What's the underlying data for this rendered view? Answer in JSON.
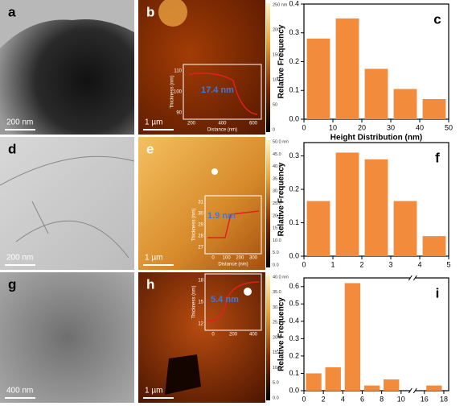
{
  "panels": [
    {
      "label": "a",
      "scale_bar": "200 nm"
    },
    {
      "label": "b",
      "scale_bar": "1 µm",
      "colorbar": [
        "250 nm",
        "200",
        "150",
        "100",
        "50",
        "0"
      ],
      "inset": {
        "yticks": [
          "110",
          "100",
          "90"
        ],
        "xticks": [
          "200",
          "400",
          "600"
        ],
        "ylabel": "Thickness (nm)",
        "xlabel": "Distance (nm)",
        "annotation": "17.4 nm"
      }
    },
    {
      "label": "d",
      "scale_bar": "200 nm"
    },
    {
      "label": "e",
      "scale_bar": "1 µm",
      "colorbar": [
        "50.0 nm",
        "45.0",
        "40.0",
        "35.0",
        "30.0",
        "25.0",
        "20.0",
        "15.0",
        "10.0",
        "5.0",
        "0.0"
      ],
      "inset": {
        "yticks": [
          "31",
          "30",
          "29",
          "28",
          "27"
        ],
        "xticks": [
          "0",
          "100",
          "200",
          "300"
        ],
        "ylabel": "Thickness (nm)",
        "xlabel": "Distance (nm)",
        "annotation": "1.9 nm"
      }
    },
    {
      "label": "g",
      "scale_bar": "400 nm"
    },
    {
      "label": "h",
      "scale_bar": "1 µm",
      "colorbar": [
        "40.0 nm",
        "35.0",
        "30.0",
        "25.0",
        "20.0",
        "15.0",
        "10.0",
        "5.0",
        "0.0"
      ],
      "inset": {
        "yticks": [
          "18",
          "15",
          "12"
        ],
        "xticks": [
          "0",
          "200",
          "400"
        ],
        "ylabel": "Thickness (nm)",
        "annotation": "5.4 nm"
      }
    }
  ],
  "chart_data": [
    {
      "type": "bar",
      "panel_label": "c",
      "ylabel": "Relative Frequency",
      "xlabel": "Height Distribution (nm)",
      "color": "#f28c3c",
      "x": [
        5,
        15,
        25,
        35,
        45
      ],
      "values": [
        0.28,
        0.35,
        0.175,
        0.105,
        0.07
      ],
      "xlim": [
        0,
        50
      ],
      "xticks": [
        0,
        10,
        20,
        30,
        40,
        50
      ],
      "ylim": [
        0,
        0.4
      ],
      "yticks": [
        {
          "value": 0,
          "label": "0.0"
        },
        0.1,
        0.2,
        0.3,
        0.4
      ]
    },
    {
      "type": "bar",
      "panel_label": "f",
      "ylabel": "Relative Frequency",
      "color": "#f28c3c",
      "x": [
        0.5,
        1.5,
        2.5,
        3.5,
        4.5
      ],
      "values": [
        0.165,
        0.31,
        0.29,
        0.165,
        0.06
      ],
      "xlim": [
        0,
        5
      ],
      "xticks": [
        0,
        1,
        2,
        3,
        4,
        5
      ],
      "ylim": [
        0,
        0.34
      ],
      "yticks": [
        {
          "value": 0,
          "label": "0.0"
        },
        0.1,
        0.2,
        0.3
      ]
    },
    {
      "type": "bar",
      "panel_label": "i",
      "ylabel": "Relative Frequency",
      "color": "#f28c3c",
      "x": [
        1,
        3,
        5,
        7,
        9,
        17
      ],
      "values": [
        0.1,
        0.135,
        0.62,
        0.03,
        0.065,
        0.03
      ],
      "xlim": [
        0,
        18.5
      ],
      "xbreak": [
        11,
        15
      ],
      "xticks": [
        0,
        2,
        4,
        6,
        8,
        10,
        16,
        18
      ],
      "ylim": [
        0,
        0.65
      ],
      "yticks": [
        {
          "value": 0,
          "label": "0.0"
        },
        0.1,
        0.2,
        0.3,
        0.4,
        0.5,
        0.6
      ]
    }
  ]
}
